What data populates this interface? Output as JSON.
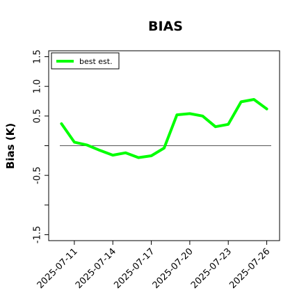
{
  "chart_data": {
    "type": "line",
    "title": "BIAS",
    "xlabel": "",
    "ylabel": "Bias (K)",
    "x": [
      "2025-07-10",
      "2025-07-11",
      "2025-07-12",
      "2025-07-13",
      "2025-07-14",
      "2025-07-15",
      "2025-07-16",
      "2025-07-17",
      "2025-07-18",
      "2025-07-19",
      "2025-07-20",
      "2025-07-21",
      "2025-07-22",
      "2025-07-23",
      "2025-07-24",
      "2025-07-25",
      "2025-07-26"
    ],
    "xlim": [
      "2025-07-09",
      "2025-07-27"
    ],
    "xticks": [
      "2025-07-11",
      "2025-07-14",
      "2025-07-17",
      "2025-07-20",
      "2025-07-23",
      "2025-07-26"
    ],
    "ylim": [
      -1.6,
      1.6
    ],
    "yticks": [
      "-1.5",
      "-0.5",
      "0.5",
      "1.0",
      "1.5"
    ],
    "ytick_values": [
      -1.5,
      -0.5,
      0.5,
      1.0,
      1.5
    ],
    "minor_yticks": [
      -1.0,
      0.0
    ],
    "reference_line": 0.0,
    "grid": false,
    "legend_position": "top-left",
    "series": [
      {
        "name": "best est.",
        "color": "#00ff00",
        "values": [
          0.37,
          0.06,
          0.01,
          -0.08,
          -0.16,
          -0.12,
          -0.2,
          -0.17,
          -0.04,
          0.52,
          0.54,
          0.5,
          0.32,
          0.36,
          0.74,
          0.78,
          0.62
        ]
      }
    ]
  }
}
